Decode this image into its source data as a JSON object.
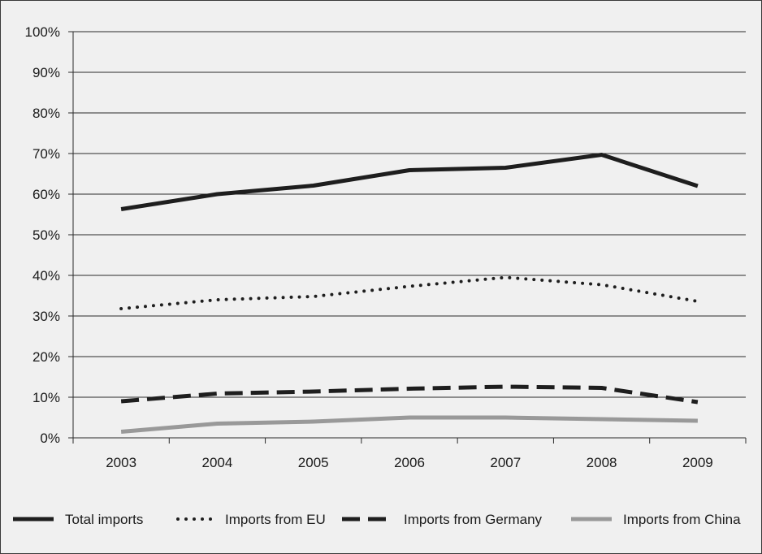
{
  "chart_data": {
    "type": "line",
    "title": "",
    "xlabel": "",
    "ylabel": "",
    "x": [
      "2003",
      "2004",
      "2005",
      "2006",
      "2007",
      "2008",
      "2009"
    ],
    "ylim": [
      0,
      100
    ],
    "yticks": [
      "0%",
      "10%",
      "20%",
      "30%",
      "40%",
      "50%",
      "60%",
      "70%",
      "80%",
      "90%",
      "100%"
    ],
    "grid": true,
    "legend_position": "bottom",
    "series": [
      {
        "name": "Total imports",
        "values": [
          56.3,
          60.0,
          62.1,
          65.9,
          66.5,
          69.7,
          62.0
        ],
        "color": "#1e1e1e",
        "style": "solid"
      },
      {
        "name": "Imports from EU",
        "values": [
          31.8,
          34.0,
          34.8,
          37.3,
          39.5,
          37.7,
          33.6
        ],
        "color": "#1e1e1e",
        "style": "dotted"
      },
      {
        "name": "Imports from Germany",
        "values": [
          9.0,
          10.9,
          11.4,
          12.1,
          12.6,
          12.3,
          8.8
        ],
        "color": "#1e1e1e",
        "style": "dashed"
      },
      {
        "name": "Imports from China",
        "values": [
          1.5,
          3.5,
          4.0,
          5.0,
          5.0,
          4.6,
          4.2
        ],
        "color": "#999999",
        "style": "solid"
      }
    ]
  }
}
